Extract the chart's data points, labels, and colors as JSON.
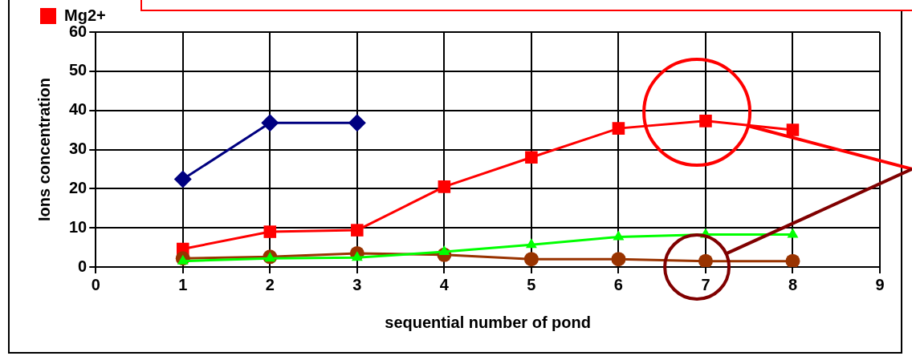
{
  "chart_data": {
    "type": "line",
    "xlabel": "sequential number of pond",
    "ylabel": "Ions concentration",
    "x": [
      1,
      2,
      3,
      4,
      5,
      6,
      7,
      8
    ],
    "series": [
      {
        "color": "#000080",
        "marker": "diamond",
        "values": [
          22.4,
          36.8,
          36.8,
          null,
          null,
          null,
          null,
          null
        ]
      },
      {
        "name": "Mg2+",
        "color": "#ff0000",
        "marker": "square",
        "values": [
          4.6,
          9.0,
          9.4,
          20.5,
          28.0,
          35.4,
          37.3,
          35.0
        ]
      },
      {
        "color": "#00ff00",
        "marker": "triangle",
        "values": [
          1.5,
          2.2,
          2.4,
          3.9,
          5.7,
          7.7,
          8.3,
          8.3
        ]
      },
      {
        "color": "#993300",
        "marker": "circle",
        "values": [
          2.2,
          2.6,
          3.5,
          3.1,
          2.0,
          2.0,
          1.5,
          1.5
        ]
      }
    ],
    "xlim": [
      0,
      9
    ],
    "xticks": [
      0,
      1,
      2,
      3,
      4,
      5,
      6,
      7,
      8,
      9
    ],
    "ylim": [
      0,
      60
    ],
    "yticks": [
      0,
      10,
      20,
      30,
      40,
      50,
      60
    ],
    "grid": true,
    "legend": "top left",
    "line_style": "solid"
  }
}
